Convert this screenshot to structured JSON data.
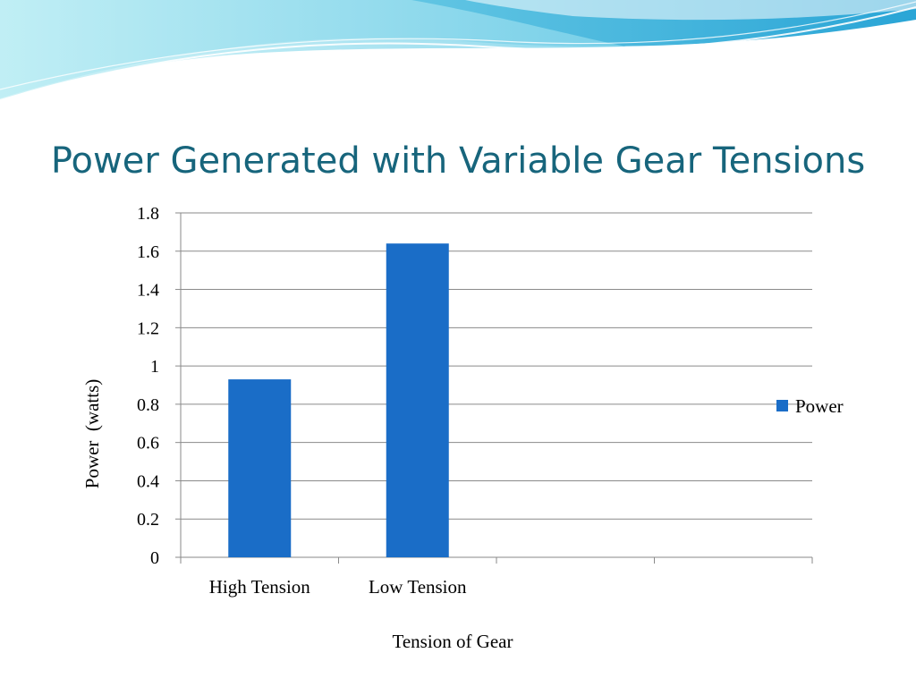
{
  "slide": {
    "title": "Power Generated with Variable Gear Tensions"
  },
  "colors": {
    "bar": "#1a6dc7",
    "title": "#17657c",
    "grid": "#8a8a8a",
    "text": "#000000"
  },
  "chart_data": {
    "type": "bar",
    "categories": [
      "High Tension",
      "Low Tension",
      "",
      ""
    ],
    "series": [
      {
        "name": "Power",
        "values": [
          0.93,
          1.64,
          null,
          null
        ]
      }
    ],
    "xlabel": "Tension of Gear",
    "ylabel": "Power  (watts)",
    "ylim": [
      0,
      1.8
    ],
    "yticks": [
      "0",
      "0.2",
      "0.4",
      "0.6",
      "0.8",
      "1",
      "1.2",
      "1.4",
      "1.6",
      "1.8"
    ],
    "grid": true,
    "legend": "right"
  }
}
